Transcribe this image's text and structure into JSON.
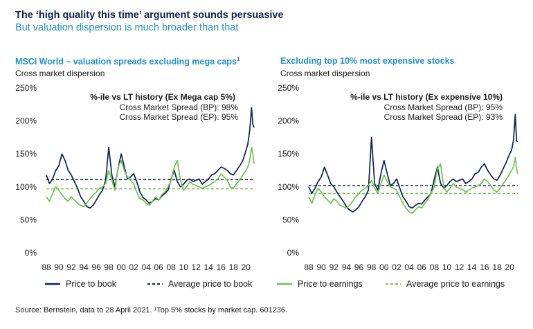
{
  "header": {
    "title": "The ‘high quality this time’ argument sounds persuasive",
    "subtitle": "But valuation dispersion is much broader than that"
  },
  "colors": {
    "navy": "#0b2150",
    "green": "#6cc24a",
    "accent_blue": "#1f8fc9"
  },
  "legend": {
    "pb": "Price to book",
    "avg_pb": "Average price to book",
    "pe": "Price to earnings",
    "avg_pe": "Average price to earnings"
  },
  "source": "Source: Bernstein, data to 28 April 2021. ¹Top 5% stocks by market cap. 601236.",
  "panels": [
    {
      "title": "MSCI World – valuation spreads excluding mega caps",
      "title_sup": "1",
      "subtitle": "Cross market dispersion",
      "anno_title": "%-ile vs LT history (Ex Mega cap 5%)",
      "anno_line1": "Cross Market Spread (BP): 98%",
      "anno_line2": "Cross Market Spread (EP): 95%"
    },
    {
      "title": "Excluding top 10% most expensive stocks",
      "title_sup": "",
      "subtitle": "Cross market dispersion",
      "anno_title": "%-ile vs LT history (Ex expensive 10%)",
      "anno_line1": "Cross Market Spread (BP): 95%",
      "anno_line2": "Cross Market Spread (EP): 93%"
    }
  ],
  "chart_data": [
    {
      "type": "line",
      "title": "MSCI World – valuation spreads excluding mega caps",
      "ylabel": "Cross market dispersion",
      "ylim": [
        0,
        250
      ],
      "yticks": [
        0,
        50,
        100,
        150,
        200,
        250
      ],
      "ytick_labels": [
        "0%",
        "50%",
        "100%",
        "150%",
        "200%",
        "250%"
      ],
      "xlim": [
        1988,
        2021.3
      ],
      "xticks": [
        1988,
        1990,
        1992,
        1994,
        1996,
        1998,
        2000,
        2002,
        2004,
        2006,
        2008,
        2010,
        2012,
        2014,
        2016,
        2018,
        2020
      ],
      "xtick_labels": [
        "88",
        "90",
        "92",
        "94",
        "96",
        "98",
        "00",
        "02",
        "04",
        "06",
        "08",
        "10",
        "12",
        "14",
        "16",
        "18",
        "20"
      ],
      "grid": false,
      "legend_position": "bottom",
      "series": [
        {
          "name": "Price to book",
          "x": [
            1988,
            1988.5,
            1989,
            1989.5,
            1990,
            1990.5,
            1991,
            1991.5,
            1992,
            1992.5,
            1993,
            1993.5,
            1994,
            1994.5,
            1995,
            1995.5,
            1996,
            1996.5,
            1997,
            1997.5,
            1998,
            1998.5,
            1999,
            1999.5,
            2000,
            2000.5,
            2001,
            2001.5,
            2002,
            2002.5,
            2003,
            2003.5,
            2004,
            2004.5,
            2005,
            2005.5,
            2006,
            2006.5,
            2007,
            2007.5,
            2008,
            2008.5,
            2009,
            2009.5,
            2010,
            2010.5,
            2011,
            2011.5,
            2012,
            2012.5,
            2013,
            2013.5,
            2014,
            2014.5,
            2015,
            2015.5,
            2016,
            2016.5,
            2017,
            2017.5,
            2018,
            2018.5,
            2019,
            2019.5,
            2020,
            2020.3,
            2020.6,
            2020.9,
            2021.1,
            2021.3
          ],
          "y": [
            118,
            105,
            112,
            125,
            132,
            150,
            140,
            125,
            118,
            108,
            98,
            85,
            78,
            70,
            68,
            72,
            80,
            88,
            95,
            110,
            160,
            118,
            100,
            128,
            150,
            130,
            112,
            115,
            120,
            108,
            92,
            84,
            80,
            75,
            78,
            82,
            80,
            86,
            90,
            95,
            112,
            125,
            108,
            100,
            104,
            110,
            112,
            108,
            110,
            112,
            104,
            108,
            112,
            118,
            120,
            125,
            130,
            128,
            125,
            120,
            118,
            125,
            132,
            140,
            155,
            165,
            185,
            220,
            195,
            190
          ]
        },
        {
          "name": "Average price to book",
          "x": [
            1988,
            2021.3
          ],
          "y": [
            111,
            111
          ]
        },
        {
          "name": "Price to earnings",
          "x": [
            1988,
            1988.5,
            1989,
            1989.5,
            1990,
            1990.5,
            1991,
            1991.5,
            1992,
            1992.5,
            1993,
            1993.5,
            1994,
            1994.5,
            1995,
            1995.5,
            1996,
            1996.5,
            1997,
            1997.5,
            1998,
            1998.5,
            1999,
            1999.5,
            2000,
            2000.5,
            2001,
            2001.5,
            2002,
            2002.5,
            2003,
            2003.5,
            2004,
            2004.5,
            2005,
            2005.5,
            2006,
            2006.5,
            2007,
            2007.5,
            2008,
            2008.5,
            2009,
            2009.5,
            2010,
            2010.5,
            2011,
            2011.5,
            2012,
            2012.5,
            2013,
            2013.5,
            2014,
            2014.5,
            2015,
            2015.5,
            2016,
            2016.5,
            2017,
            2017.5,
            2018,
            2018.5,
            2019,
            2019.5,
            2020,
            2020.3,
            2020.6,
            2020.9,
            2021.1,
            2021.3
          ],
          "y": [
            85,
            78,
            90,
            100,
            95,
            88,
            82,
            78,
            85,
            80,
            75,
            72,
            70,
            76,
            82,
            88,
            92,
            98,
            100,
            105,
            125,
            110,
            95,
            130,
            140,
            125,
            115,
            110,
            105,
            92,
            82,
            80,
            75,
            72,
            78,
            85,
            80,
            88,
            92,
            100,
            110,
            130,
            140,
            110,
            95,
            100,
            108,
            104,
            102,
            100,
            98,
            100,
            102,
            105,
            108,
            112,
            120,
            115,
            110,
            100,
            98,
            105,
            110,
            118,
            125,
            130,
            140,
            160,
            150,
            135
          ]
        },
        {
          "name": "Average price to earnings",
          "x": [
            1988,
            2021.3
          ],
          "y": [
            97,
            97
          ]
        }
      ]
    },
    {
      "type": "line",
      "title": "Excluding top 10% most expensive stocks",
      "ylabel": "Cross market dispersion",
      "ylim": [
        0,
        250
      ],
      "yticks": [
        0,
        50,
        100,
        150,
        200,
        250
      ],
      "ytick_labels": [
        "0%",
        "50%",
        "100%",
        "150%",
        "200%",
        "250%"
      ],
      "xlim": [
        1988,
        2021.3
      ],
      "xticks": [
        1988,
        1990,
        1992,
        1994,
        1996,
        1998,
        2000,
        2002,
        2004,
        2006,
        2008,
        2010,
        2012,
        2014,
        2016,
        2018,
        2020
      ],
      "xtick_labels": [
        "88",
        "90",
        "92",
        "94",
        "96",
        "98",
        "00",
        "02",
        "04",
        "06",
        "08",
        "10",
        "12",
        "14",
        "16",
        "18",
        "20"
      ],
      "grid": false,
      "legend_position": "bottom",
      "series": [
        {
          "name": "Price to book",
          "x": [
            1988,
            1988.5,
            1989,
            1989.5,
            1990,
            1990.5,
            1991,
            1991.5,
            1992,
            1992.5,
            1993,
            1993.5,
            1994,
            1994.5,
            1995,
            1995.5,
            1996,
            1996.5,
            1997,
            1997.5,
            1998,
            1998.5,
            1999,
            1999.5,
            2000,
            2000.5,
            2001,
            2001.5,
            2002,
            2002.5,
            2003,
            2003.5,
            2004,
            2004.5,
            2005,
            2005.5,
            2006,
            2006.5,
            2007,
            2007.5,
            2008,
            2008.5,
            2009,
            2009.5,
            2010,
            2010.5,
            2011,
            2011.5,
            2012,
            2012.5,
            2013,
            2013.5,
            2014,
            2014.5,
            2015,
            2015.5,
            2016,
            2016.5,
            2017,
            2017.5,
            2018,
            2018.5,
            2019,
            2019.5,
            2020,
            2020.3,
            2020.6,
            2020.9,
            2021.1,
            2021.3
          ],
          "y": [
            100,
            90,
            98,
            108,
            115,
            130,
            118,
            105,
            100,
            92,
            85,
            78,
            70,
            65,
            62,
            65,
            70,
            78,
            85,
            95,
            175,
            105,
            95,
            120,
            140,
            120,
            102,
            105,
            112,
            98,
            85,
            78,
            70,
            68,
            72,
            75,
            74,
            80,
            85,
            90,
            112,
            130,
            105,
            98,
            102,
            108,
            112,
            108,
            110,
            112,
            105,
            108,
            112,
            120,
            122,
            130,
            135,
            125,
            118,
            112,
            110,
            118,
            128,
            138,
            150,
            155,
            170,
            210,
            170,
            168
          ]
        },
        {
          "name": "Average price to book",
          "x": [
            1988,
            2021.3
          ],
          "y": [
            102,
            102
          ]
        },
        {
          "name": "Price to earnings",
          "x": [
            1988,
            1988.5,
            1989,
            1989.5,
            1990,
            1990.5,
            1991,
            1991.5,
            1992,
            1992.5,
            1993,
            1993.5,
            1994,
            1994.5,
            1995,
            1995.5,
            1996,
            1996.5,
            1997,
            1997.5,
            1998,
            1998.5,
            1999,
            1999.5,
            2000,
            2000.5,
            2001,
            2001.5,
            2002,
            2002.5,
            2003,
            2003.5,
            2004,
            2004.5,
            2005,
            2005.5,
            2006,
            2006.5,
            2007,
            2007.5,
            2008,
            2008.5,
            2009,
            2009.5,
            2010,
            2010.5,
            2011,
            2011.5,
            2012,
            2012.5,
            2013,
            2013.5,
            2014,
            2014.5,
            2015,
            2015.5,
            2016,
            2016.5,
            2017,
            2017.5,
            2018,
            2018.5,
            2019,
            2019.5,
            2020,
            2020.3,
            2020.6,
            2020.9,
            2021.1,
            2021.3
          ],
          "y": [
            85,
            75,
            88,
            98,
            92,
            85,
            80,
            75,
            82,
            78,
            72,
            70,
            68,
            72,
            78,
            85,
            90,
            95,
            98,
            102,
            110,
            98,
            90,
            105,
            118,
            108,
            100,
            98,
            95,
            85,
            75,
            68,
            62,
            60,
            65,
            70,
            68,
            75,
            82,
            90,
            100,
            128,
            135,
            100,
            92,
            98,
            105,
            100,
            98,
            96,
            92,
            95,
            98,
            100,
            102,
            105,
            112,
            108,
            102,
            95,
            92,
            98,
            105,
            112,
            120,
            125,
            130,
            145,
            128,
            120
          ]
        },
        {
          "name": "Average price to earnings",
          "x": [
            1988,
            2021.3
          ],
          "y": [
            90,
            90
          ]
        }
      ]
    }
  ]
}
